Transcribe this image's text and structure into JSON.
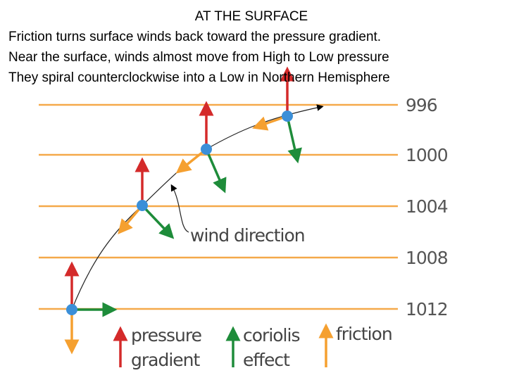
{
  "header": {
    "title": "AT THE SURFACE",
    "lines": [
      "Friction turns surface winds back toward the pressure gradient.",
      "Near the surface, winds almost move from High to Low pressure",
      "They spiral counterclockwise into a Low in Northern Hemisphere"
    ]
  },
  "isobars": [
    "996",
    "1000",
    "1004",
    "1008",
    "1012"
  ],
  "annotation": "wind direction",
  "legend": [
    {
      "lines": [
        "pressure",
        "gradient"
      ]
    },
    {
      "lines": [
        "coriolis",
        "effect"
      ]
    },
    {
      "lines": [
        "friction"
      ]
    }
  ]
}
